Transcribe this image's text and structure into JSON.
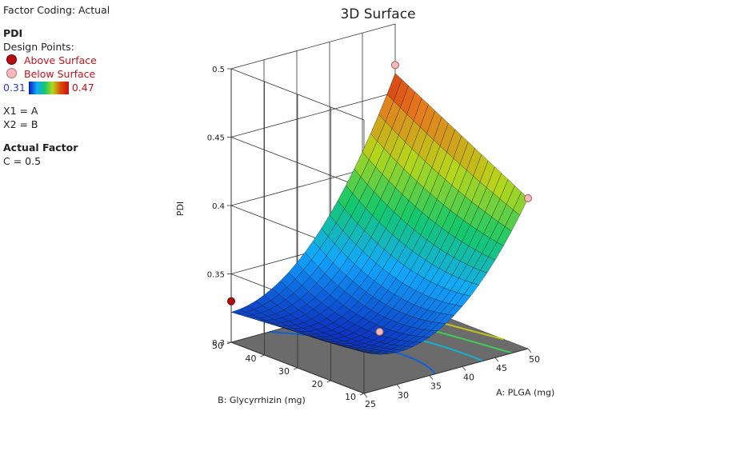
{
  "legend": {
    "factor_coding": "Factor Coding: Actual",
    "response": "PDI",
    "design_points": "Design Points:",
    "above": "Above Surface",
    "below": "Below Surface",
    "scale_min": "0.31",
    "scale_max": "0.47",
    "x1": "X1 = A",
    "x2": "X2 = B",
    "actual_factor": "Actual Factor",
    "c_value": "C = 0.5"
  },
  "colors": {
    "low": "#0a1ab5",
    "high": "#c8100c",
    "above_point": "#b50d12",
    "below_point": "#f5b9b9",
    "floor": "#6b6b6b"
  },
  "chart_data": {
    "type": "surface3d",
    "title": "3D Surface",
    "xlabel": "A: PLGA (mg)",
    "ylabel": "B: Glycyrrhizin (mg)",
    "zlabel": "PDI",
    "x_ticks": [
      "25",
      "30",
      "35",
      "40",
      "45",
      "50"
    ],
    "y_ticks": [
      "10",
      "20",
      "30",
      "40",
      "50"
    ],
    "z_ticks": [
      "0.3",
      "0.35",
      "0.4",
      "0.45",
      "0.5"
    ],
    "xlim": [
      25,
      50
    ],
    "ylim": [
      10,
      50
    ],
    "zlim": [
      0.3,
      0.5
    ],
    "corner_values": [
      {
        "A": 25,
        "B": 50,
        "PDI": 0.322
      },
      {
        "A": 50,
        "B": 50,
        "PDI": 0.464
      },
      {
        "A": 25,
        "B": 10,
        "PDI": 0.33
      },
      {
        "A": 50,
        "B": 10,
        "PDI": 0.41
      }
    ],
    "minimum": {
      "A": 32,
      "B": 30,
      "PDI": 0.315
    },
    "design_points": [
      {
        "A": 25,
        "B": 50,
        "PDI": 0.33,
        "position": "above"
      },
      {
        "A": 50,
        "B": 50,
        "PDI": 0.47,
        "position": "below"
      },
      {
        "A": 50,
        "B": 10,
        "PDI": 0.41,
        "position": "below"
      },
      {
        "A": 37.5,
        "B": 30,
        "PDI": 0.31,
        "position": "below"
      }
    ],
    "contour_levels": [
      0.33,
      0.36,
      0.39,
      0.42,
      0.45
    ]
  }
}
